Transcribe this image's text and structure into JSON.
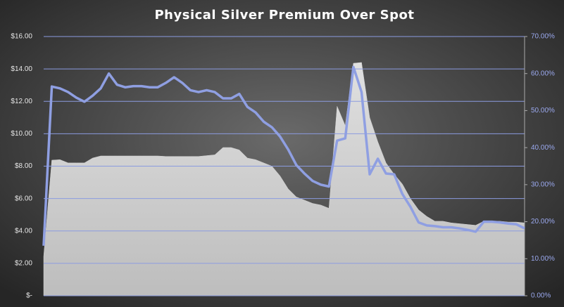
{
  "chart_data": {
    "type": "area-line",
    "title": "Physical Silver Premium Over Spot",
    "categories": [
      null,
      null,
      null,
      null,
      null,
      null,
      null,
      null,
      null,
      null,
      null,
      null,
      null,
      null,
      null,
      null,
      null,
      null,
      null,
      null,
      null,
      null,
      null,
      null,
      null,
      null,
      null,
      null,
      null,
      null,
      null,
      null,
      null,
      null,
      null,
      null,
      null,
      null,
      null,
      null,
      null,
      null,
      null,
      null,
      null,
      null,
      null,
      null,
      null,
      null,
      null,
      null,
      null,
      null,
      null,
      null,
      null,
      null,
      null,
      null
    ],
    "series": [
      {
        "type": "area",
        "color": "#cfcfcf",
        "values": [
          2.43,
          8.37,
          8.4,
          8.2,
          8.2,
          8.2,
          8.5,
          8.63,
          8.63,
          8.63,
          8.63,
          8.63,
          8.63,
          8.63,
          8.63,
          8.6,
          8.6,
          8.6,
          8.6,
          8.6,
          8.65,
          8.7,
          9.15,
          9.15,
          9.0,
          8.5,
          8.4,
          8.2,
          8.0,
          7.4,
          6.6,
          6.1,
          5.9,
          5.7,
          5.6,
          5.4,
          11.7,
          10.5,
          14.35,
          14.4,
          11,
          9.5,
          8.2,
          7.5,
          6.9,
          6.0,
          5.3,
          4.9,
          4.6,
          4.6,
          4.5,
          4.45,
          4.4,
          4.35,
          4.6,
          4.6,
          4.6,
          4.55,
          4.55,
          4.5
        ]
      },
      {
        "type": "line",
        "axis": "y2",
        "color": "#8f9fe2",
        "values": [
          13.5,
          56.5,
          56,
          55,
          53.5,
          52.4,
          54,
          56,
          60,
          57,
          56.3,
          56.6,
          56.6,
          56.3,
          56.3,
          57.5,
          59,
          57.5,
          55.5,
          55,
          55.5,
          55,
          53.3,
          53.3,
          54.5,
          51,
          49.5,
          47,
          45.5,
          43,
          39.5,
          35.3,
          33,
          31,
          30,
          29.5,
          41.9,
          42.5,
          61.8,
          55,
          32.8,
          37,
          33,
          32.8,
          27.5,
          24,
          19.8,
          19,
          18.8,
          18.5,
          18.5,
          18.2,
          17.8,
          17.3,
          20,
          20,
          19.8,
          19.5,
          19.3,
          18.2
        ]
      }
    ],
    "ylim": [
      0,
      16
    ],
    "yticks": [
      {
        "value": 0,
        "label": "$-"
      },
      {
        "value": 2,
        "label": "$2.00"
      },
      {
        "value": 4,
        "label": "$4.00"
      },
      {
        "value": 6,
        "label": "$6.00"
      },
      {
        "value": 8,
        "label": "$8.00"
      },
      {
        "value": 10,
        "label": "$10.00"
      },
      {
        "value": 12,
        "label": "$12.00"
      },
      {
        "value": 14,
        "label": "$14.00"
      },
      {
        "value": 16,
        "label": "$16.00"
      }
    ],
    "y2lim": [
      0,
      70
    ],
    "y2ticks": [
      {
        "value": 0,
        "label": "0.00%"
      },
      {
        "value": 10,
        "label": "10.00%"
      },
      {
        "value": 20,
        "label": "20.00%"
      },
      {
        "value": 30,
        "label": "30.00%"
      },
      {
        "value": 40,
        "label": "40.00%"
      },
      {
        "value": 50,
        "label": "50.00%"
      },
      {
        "value": 60,
        "label": "60.00%"
      },
      {
        "value": 70,
        "label": "70.00%"
      }
    ],
    "grid": true,
    "grid_color": "#8b9be0"
  }
}
